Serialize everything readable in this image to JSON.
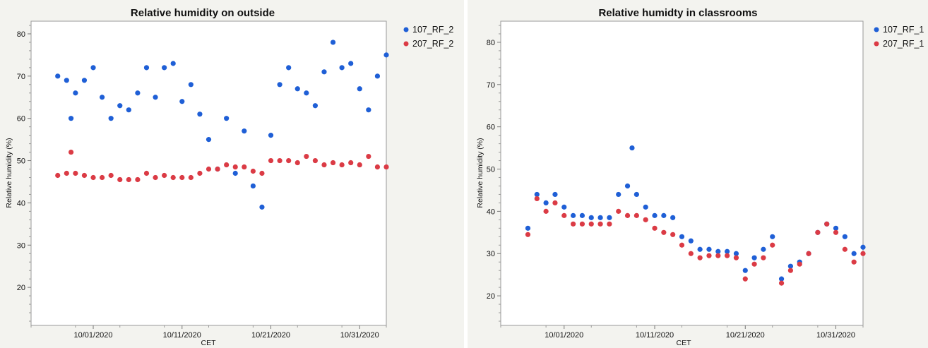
{
  "colors": {
    "blue": "#1f5fd6",
    "red": "#db3b45",
    "panel_bg": "#f3f3ef",
    "plot_bg": "#ffffff"
  },
  "chart_data": [
    {
      "type": "scatter",
      "title": "Relative humidity on outside",
      "xlabel": "CET",
      "ylabel": "Relative humidity (%)",
      "ylim": [
        11,
        83
      ],
      "xlim": [
        "2020-09-24",
        "2020-11-03"
      ],
      "x_ticks": [
        "10/01/2020",
        "10/11/2020",
        "10/21/2020",
        "10/31/2020"
      ],
      "y_ticks": [
        20,
        30,
        40,
        50,
        60,
        70,
        80
      ],
      "grid": false,
      "legend_position": "right",
      "series": [
        {
          "name": "107_RF_2",
          "color": "#1f5fd6",
          "points": [
            [
              "2020-09-27",
              70
            ],
            [
              "2020-09-28",
              69
            ],
            [
              "2020-09-28T12",
              60
            ],
            [
              "2020-09-29",
              66
            ],
            [
              "2020-09-30",
              69
            ],
            [
              "2020-10-01",
              72
            ],
            [
              "2020-10-02",
              65
            ],
            [
              "2020-10-03",
              60
            ],
            [
              "2020-10-04",
              63
            ],
            [
              "2020-10-05",
              62
            ],
            [
              "2020-10-06",
              66
            ],
            [
              "2020-10-07",
              72
            ],
            [
              "2020-10-08",
              65
            ],
            [
              "2020-10-09",
              72
            ],
            [
              "2020-10-10",
              73
            ],
            [
              "2020-10-11",
              64
            ],
            [
              "2020-10-12",
              68
            ],
            [
              "2020-10-13",
              61
            ],
            [
              "2020-10-14",
              55
            ],
            [
              "2020-10-15",
              48
            ],
            [
              "2020-10-16",
              60
            ],
            [
              "2020-10-17",
              47
            ],
            [
              "2020-10-18",
              57
            ],
            [
              "2020-10-19",
              44
            ],
            [
              "2020-10-20",
              39
            ],
            [
              "2020-10-21",
              56
            ],
            [
              "2020-10-22",
              68
            ],
            [
              "2020-10-23",
              72
            ],
            [
              "2020-10-24",
              67
            ],
            [
              "2020-10-25",
              66
            ],
            [
              "2020-10-26",
              63
            ],
            [
              "2020-10-27",
              71
            ],
            [
              "2020-10-28",
              78
            ],
            [
              "2020-10-29",
              72
            ],
            [
              "2020-10-30",
              73
            ],
            [
              "2020-10-31",
              67
            ],
            [
              "2020-11-01",
              62
            ],
            [
              "2020-11-02",
              70
            ],
            [
              "2020-11-03",
              75
            ]
          ]
        },
        {
          "name": "207_RF_2",
          "color": "#db3b45",
          "points": [
            [
              "2020-09-27",
              46.5
            ],
            [
              "2020-09-28",
              47
            ],
            [
              "2020-09-28T12",
              52
            ],
            [
              "2020-09-29",
              47
            ],
            [
              "2020-09-30",
              46.5
            ],
            [
              "2020-10-01",
              46
            ],
            [
              "2020-10-02",
              46
            ],
            [
              "2020-10-03",
              46.5
            ],
            [
              "2020-10-04",
              45.5
            ],
            [
              "2020-10-05",
              45.5
            ],
            [
              "2020-10-06",
              45.5
            ],
            [
              "2020-10-07",
              47
            ],
            [
              "2020-10-08",
              46
            ],
            [
              "2020-10-09",
              46.5
            ],
            [
              "2020-10-10",
              46
            ],
            [
              "2020-10-11",
              46
            ],
            [
              "2020-10-12",
              46
            ],
            [
              "2020-10-13",
              47
            ],
            [
              "2020-10-14",
              48
            ],
            [
              "2020-10-15",
              48
            ],
            [
              "2020-10-16",
              49
            ],
            [
              "2020-10-17",
              48.5
            ],
            [
              "2020-10-18",
              48.5
            ],
            [
              "2020-10-19",
              47.5
            ],
            [
              "2020-10-20",
              47
            ],
            [
              "2020-10-21",
              50
            ],
            [
              "2020-10-22",
              50
            ],
            [
              "2020-10-23",
              50
            ],
            [
              "2020-10-24",
              49.5
            ],
            [
              "2020-10-25",
              51
            ],
            [
              "2020-10-26",
              50
            ],
            [
              "2020-10-27",
              49
            ],
            [
              "2020-10-28",
              49.5
            ],
            [
              "2020-10-29",
              49
            ],
            [
              "2020-10-30",
              49.5
            ],
            [
              "2020-10-31",
              49
            ],
            [
              "2020-11-01",
              51
            ],
            [
              "2020-11-02",
              48.5
            ],
            [
              "2020-11-03",
              48.5
            ]
          ]
        }
      ]
    },
    {
      "type": "scatter",
      "title": "Relative humidty in classrooms",
      "xlabel": "CET",
      "ylabel": "Relative humidity (%)",
      "ylim": [
        13,
        85
      ],
      "xlim": [
        "2020-09-24",
        "2020-11-03"
      ],
      "x_ticks": [
        "10/01/2020",
        "10/11/2020",
        "10/21/2020",
        "10/31/2020"
      ],
      "y_ticks": [
        20,
        30,
        40,
        50,
        60,
        70,
        80
      ],
      "grid": false,
      "legend_position": "right",
      "series": [
        {
          "name": "107_RF_1",
          "color": "#1f5fd6",
          "points": [
            [
              "2020-09-27",
              36
            ],
            [
              "2020-09-28",
              44
            ],
            [
              "2020-09-29",
              42
            ],
            [
              "2020-09-30",
              44
            ],
            [
              "2020-10-01",
              41
            ],
            [
              "2020-10-02",
              39
            ],
            [
              "2020-10-03",
              39
            ],
            [
              "2020-10-04",
              38.5
            ],
            [
              "2020-10-05",
              38.5
            ],
            [
              "2020-10-06",
              38.5
            ],
            [
              "2020-10-07",
              44
            ],
            [
              "2020-10-08",
              46
            ],
            [
              "2020-10-08T12",
              55
            ],
            [
              "2020-10-09",
              44
            ],
            [
              "2020-10-10",
              41
            ],
            [
              "2020-10-11",
              39
            ],
            [
              "2020-10-12",
              39
            ],
            [
              "2020-10-13",
              38.5
            ],
            [
              "2020-10-14",
              34
            ],
            [
              "2020-10-15",
              33
            ],
            [
              "2020-10-16",
              31
            ],
            [
              "2020-10-17",
              31
            ],
            [
              "2020-10-18",
              30.5
            ],
            [
              "2020-10-19",
              30.5
            ],
            [
              "2020-10-20",
              30
            ],
            [
              "2020-10-21",
              26
            ],
            [
              "2020-10-22",
              29
            ],
            [
              "2020-10-23",
              31
            ],
            [
              "2020-10-24",
              34
            ],
            [
              "2020-10-25",
              24
            ],
            [
              "2020-10-26",
              27
            ],
            [
              "2020-10-27",
              28
            ],
            [
              "2020-10-28",
              30
            ],
            [
              "2020-10-29",
              35
            ],
            [
              "2020-10-30",
              37
            ],
            [
              "2020-10-31",
              36
            ],
            [
              "2020-11-01",
              34
            ],
            [
              "2020-11-02",
              30
            ],
            [
              "2020-11-03",
              31.5
            ]
          ]
        },
        {
          "name": "207_RF_1",
          "color": "#db3b45",
          "points": [
            [
              "2020-09-27",
              34.5
            ],
            [
              "2020-09-28",
              43
            ],
            [
              "2020-09-29",
              40
            ],
            [
              "2020-09-30",
              42
            ],
            [
              "2020-10-01",
              39
            ],
            [
              "2020-10-02",
              37
            ],
            [
              "2020-10-03",
              37
            ],
            [
              "2020-10-04",
              37
            ],
            [
              "2020-10-05",
              37
            ],
            [
              "2020-10-06",
              37
            ],
            [
              "2020-10-07",
              40
            ],
            [
              "2020-10-08",
              39
            ],
            [
              "2020-10-09",
              39
            ],
            [
              "2020-10-10",
              38
            ],
            [
              "2020-10-11",
              36
            ],
            [
              "2020-10-12",
              35
            ],
            [
              "2020-10-13",
              34.5
            ],
            [
              "2020-10-14",
              32
            ],
            [
              "2020-10-15",
              30
            ],
            [
              "2020-10-16",
              29
            ],
            [
              "2020-10-17",
              29.5
            ],
            [
              "2020-10-18",
              29.5
            ],
            [
              "2020-10-19",
              29.5
            ],
            [
              "2020-10-20",
              29
            ],
            [
              "2020-10-21",
              24
            ],
            [
              "2020-10-22",
              27.5
            ],
            [
              "2020-10-23",
              29
            ],
            [
              "2020-10-24",
              32
            ],
            [
              "2020-10-25",
              23
            ],
            [
              "2020-10-26",
              26
            ],
            [
              "2020-10-27",
              27.5
            ],
            [
              "2020-10-28",
              30
            ],
            [
              "2020-10-29",
              35
            ],
            [
              "2020-10-30",
              37
            ],
            [
              "2020-10-31",
              35
            ],
            [
              "2020-11-01",
              31
            ],
            [
              "2020-11-02",
              28
            ],
            [
              "2020-11-03",
              30
            ]
          ]
        }
      ]
    }
  ]
}
